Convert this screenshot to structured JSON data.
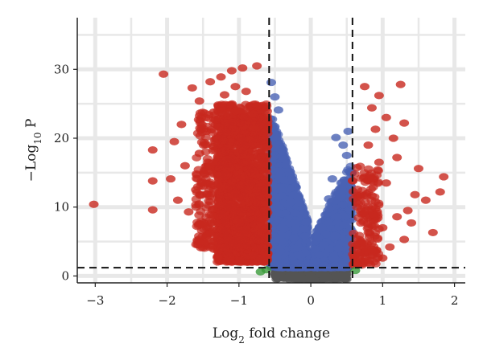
{
  "chart_data": {
    "type": "scatter",
    "title": "",
    "xlabel": {
      "base": "Log",
      "sub": "2",
      "rest": " fold change"
    },
    "ylabel": {
      "base": "−Log",
      "sub": "10",
      "rest": " P"
    },
    "xlim": [
      -3.25,
      2.15
    ],
    "ylim": [
      -1,
      37.5
    ],
    "x_ticks": [
      -3,
      -2,
      -1,
      0,
      1,
      2
    ],
    "y_ticks": [
      0,
      10,
      20,
      30
    ],
    "grid": true,
    "legend": "none",
    "thresholds": {
      "log2fc": [
        -0.58,
        0.58
      ],
      "neg_log10_p": 1.2
    },
    "colors": {
      "significant_fc_and_p": "#c8281e",
      "significant_p_only": "#4a63b4",
      "not_significant": "#555555",
      "fc_only": "#3a9a3a",
      "grid": "#e8e8e8",
      "threshold_line": "#111111"
    },
    "series": [
      {
        "name": "",
        "color_key": "significant_fc_and_p",
        "points": [
          {
            "x": -3.02,
            "y": 10.4
          },
          {
            "x": -2.05,
            "y": 29.3
          },
          {
            "x": -2.2,
            "y": 18.3
          },
          {
            "x": -2.2,
            "y": 13.8
          },
          {
            "x": -2.2,
            "y": 9.6
          },
          {
            "x": -1.65,
            "y": 27.3
          },
          {
            "x": -1.55,
            "y": 25.4
          },
          {
            "x": -1.4,
            "y": 28.2
          },
          {
            "x": -1.25,
            "y": 28.9
          },
          {
            "x": -1.1,
            "y": 29.8
          },
          {
            "x": -0.95,
            "y": 30.2
          },
          {
            "x": -0.75,
            "y": 30.5
          },
          {
            "x": -1.8,
            "y": 22.0
          },
          {
            "x": -1.9,
            "y": 19.5
          },
          {
            "x": -1.75,
            "y": 16.0
          },
          {
            "x": -1.95,
            "y": 14.1
          },
          {
            "x": -1.85,
            "y": 11.0
          },
          {
            "x": -1.7,
            "y": 9.3
          },
          {
            "x": -1.55,
            "y": 7.5
          },
          {
            "x": -1.45,
            "y": 5.5
          },
          {
            "x": -1.35,
            "y": 3.9
          },
          {
            "x": -1.3,
            "y": 2.7
          },
          {
            "x": -1.1,
            "y": 2.0
          },
          {
            "x": -1.6,
            "y": 12.5
          },
          {
            "x": -1.55,
            "y": 17.8
          },
          {
            "x": -1.45,
            "y": 21.0
          },
          {
            "x": -1.35,
            "y": 23.8
          },
          {
            "x": -1.2,
            "y": 26.3
          },
          {
            "x": -1.05,
            "y": 27.5
          },
          {
            "x": -0.9,
            "y": 26.8
          },
          {
            "x": 0.75,
            "y": 27.5
          },
          {
            "x": 0.95,
            "y": 26.2
          },
          {
            "x": 1.25,
            "y": 27.8
          },
          {
            "x": 0.85,
            "y": 24.4
          },
          {
            "x": 1.05,
            "y": 23.0
          },
          {
            "x": 1.3,
            "y": 22.2
          },
          {
            "x": 0.9,
            "y": 21.3
          },
          {
            "x": 1.15,
            "y": 20.0
          },
          {
            "x": 0.8,
            "y": 19.0
          },
          {
            "x": 1.5,
            "y": 15.6
          },
          {
            "x": 1.85,
            "y": 14.4
          },
          {
            "x": 1.8,
            "y": 12.2
          },
          {
            "x": 1.45,
            "y": 11.8
          },
          {
            "x": 1.6,
            "y": 11.0
          },
          {
            "x": 1.35,
            "y": 9.5
          },
          {
            "x": 1.2,
            "y": 8.6
          },
          {
            "x": 1.4,
            "y": 7.7
          },
          {
            "x": 1.0,
            "y": 7.0
          },
          {
            "x": 1.7,
            "y": 6.3
          },
          {
            "x": 1.3,
            "y": 5.3
          },
          {
            "x": 1.1,
            "y": 4.2
          },
          {
            "x": 0.85,
            "y": 3.6
          },
          {
            "x": 1.0,
            "y": 2.6
          },
          {
            "x": 0.75,
            "y": 2.1
          },
          {
            "x": 0.65,
            "y": 1.6
          },
          {
            "x": 0.7,
            "y": 4.8
          },
          {
            "x": 0.9,
            "y": 9.8
          },
          {
            "x": 1.05,
            "y": 13.5
          },
          {
            "x": 0.95,
            "y": 16.5
          },
          {
            "x": 1.2,
            "y": 17.2
          }
        ],
        "dense_regions": [
          {
            "x_range": [
              -1.3,
              -0.6
            ],
            "y_range": [
              2.0,
              25.0
            ],
            "count": 1600
          },
          {
            "x_range": [
              -1.6,
              -0.9
            ],
            "y_range": [
              4.0,
              24.0
            ],
            "count": 420
          },
          {
            "x_range": [
              0.58,
              0.95
            ],
            "y_range": [
              1.5,
              16.0
            ],
            "count": 160
          }
        ]
      },
      {
        "name": "",
        "color_key": "significant_p_only",
        "points": [
          {
            "x": -0.55,
            "y": 28.1
          },
          {
            "x": -0.5,
            "y": 26.0
          },
          {
            "x": -0.45,
            "y": 24.1
          },
          {
            "x": 0.35,
            "y": 20.1
          },
          {
            "x": 0.45,
            "y": 19.0
          },
          {
            "x": 0.52,
            "y": 21.0
          },
          {
            "x": 0.3,
            "y": 14.1
          },
          {
            "x": 0.25,
            "y": 11.2
          },
          {
            "x": 0.5,
            "y": 17.5
          }
        ],
        "dense_regions": [
          {
            "x_range": [
              -0.58,
              -0.05
            ],
            "y_range": [
              1.2,
              23.0
            ],
            "count": 1500
          },
          {
            "x_range": [
              -0.25,
              0.25
            ],
            "y_range": [
              1.2,
              9.0
            ],
            "count": 600
          },
          {
            "x_range": [
              0.05,
              0.58
            ],
            "y_range": [
              1.2,
              16.0
            ],
            "count": 700
          }
        ]
      },
      {
        "name": "",
        "color_key": "not_significant",
        "points": [],
        "dense_regions": [
          {
            "x_range": [
              -0.5,
              0.5
            ],
            "y_range": [
              -0.5,
              1.2
            ],
            "count": 500
          }
        ]
      },
      {
        "name": "",
        "color_key": "fc_only",
        "points": [
          {
            "x": -0.62,
            "y": 0.9
          },
          {
            "x": -0.7,
            "y": 0.6
          },
          {
            "x": 0.62,
            "y": 0.8
          }
        ],
        "dense_regions": []
      }
    ]
  }
}
